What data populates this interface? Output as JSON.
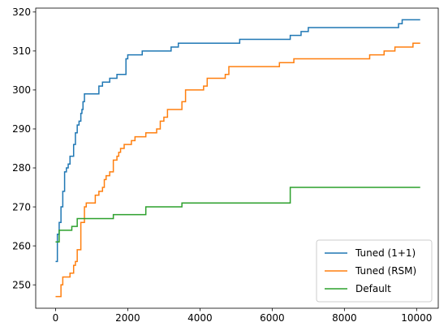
{
  "chart_data": {
    "type": "line",
    "step": true,
    "grid": false,
    "legend": "lower-right",
    "xlim": [
      -550,
      10600
    ],
    "ylim": [
      244,
      321
    ],
    "xticks": [
      0,
      2000,
      4000,
      6000,
      8000,
      10000
    ],
    "yticks": [
      250,
      260,
      270,
      280,
      290,
      300,
      310,
      320
    ],
    "xtick_labels": [
      "0",
      "2000",
      "4000",
      "6000",
      "8000",
      "10000"
    ],
    "ytick_labels": [
      "250",
      "260",
      "270",
      "280",
      "290",
      "300",
      "310",
      "320"
    ],
    "series": [
      {
        "name": "Tuned (1+1)",
        "color": "#1f77b4",
        "x": [
          0,
          50,
          100,
          150,
          200,
          250,
          300,
          350,
          400,
          450,
          500,
          550,
          600,
          650,
          700,
          730,
          760,
          800,
          850,
          950,
          1200,
          1300,
          1500,
          1700,
          1950,
          2000,
          2400,
          2700,
          3200,
          3400,
          5100,
          6500,
          6800,
          7000,
          9500,
          9600,
          10100
        ],
        "y": [
          256,
          263,
          266,
          270,
          274,
          279,
          280,
          281,
          283,
          283,
          286,
          289,
          291,
          292,
          294,
          295,
          297,
          299,
          299,
          299,
          301,
          302,
          303,
          304,
          308,
          309,
          310,
          310,
          311,
          312,
          313,
          314,
          315,
          316,
          317,
          318,
          318
        ]
      },
      {
        "name": "Tuned (RSM)",
        "color": "#ff7f0e",
        "x": [
          0,
          150,
          200,
          250,
          400,
          500,
          550,
          600,
          700,
          800,
          850,
          950,
          1100,
          1200,
          1300,
          1350,
          1400,
          1500,
          1600,
          1700,
          1750,
          1800,
          1900,
          2100,
          2200,
          2300,
          2500,
          2800,
          2900,
          3000,
          3100,
          3300,
          3500,
          3600,
          3700,
          4100,
          4200,
          4400,
          4700,
          4800,
          5000,
          6200,
          6600,
          8700,
          9100,
          9400,
          9900,
          10100
        ],
        "y": [
          247,
          250,
          252,
          252,
          253,
          255,
          256,
          259,
          266,
          270,
          271,
          271,
          273,
          274,
          275,
          277,
          278,
          279,
          282,
          283,
          284,
          285,
          286,
          287,
          288,
          288,
          289,
          290,
          292,
          293,
          295,
          295,
          297,
          300,
          300,
          301,
          303,
          303,
          304,
          306,
          306,
          307,
          308,
          309,
          310,
          311,
          312,
          312
        ]
      },
      {
        "name": "Default",
        "color": "#2ca02c",
        "x": [
          0,
          100,
          200,
          300,
          450,
          600,
          1100,
          1600,
          2500,
          3500,
          6500,
          10100
        ],
        "y": [
          261,
          264,
          264,
          264,
          265,
          267,
          267,
          268,
          270,
          271,
          275,
          275
        ]
      }
    ]
  }
}
